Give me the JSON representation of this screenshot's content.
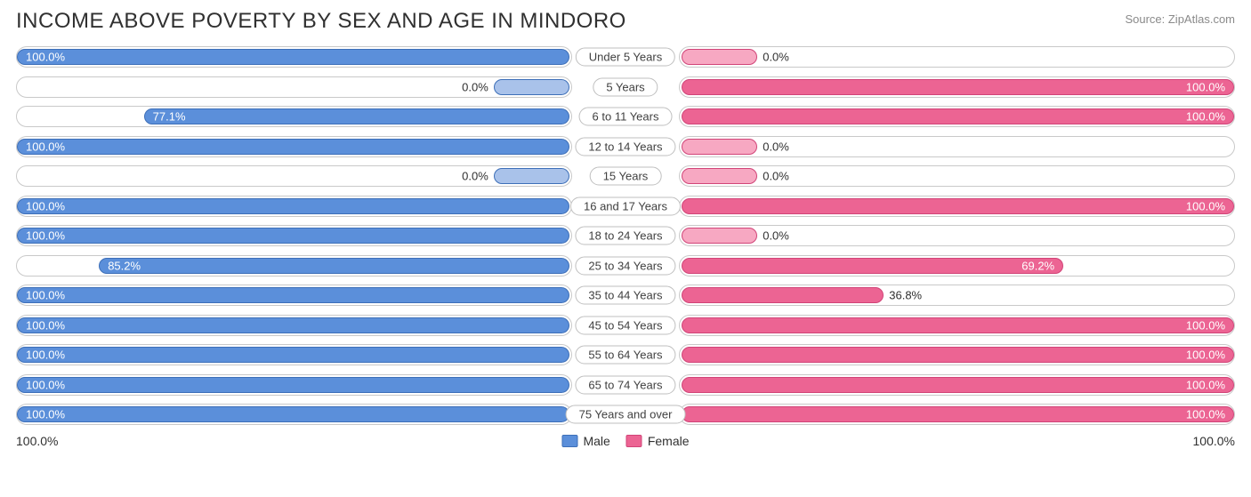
{
  "title": "INCOME ABOVE POVERTY BY SEX AND AGE IN MINDORO",
  "source": "Source: ZipAtlas.com",
  "colors": {
    "male_fill": "#5b8fda",
    "male_border": "#3d6fb8",
    "female_fill": "#ec6493",
    "female_border": "#d14478",
    "male_zero_fill": "#a9c2ea",
    "female_zero_fill": "#f7a8c2",
    "track_border": "#c9c9c9",
    "text_on_bar": "#ffffff",
    "text_off_bar": "#303030",
    "title_color": "#303030",
    "source_color": "#8a8a8a"
  },
  "axis": {
    "left_label": "100.0%",
    "right_label": "100.0%"
  },
  "legend": {
    "male": "Male",
    "female": "Female"
  },
  "zero_stub_percent": 14,
  "rows": [
    {
      "category": "Under 5 Years",
      "male": 100.0,
      "male_label": "100.0%",
      "female": 0.0,
      "female_label": "0.0%"
    },
    {
      "category": "5 Years",
      "male": 0.0,
      "male_label": "0.0%",
      "female": 100.0,
      "female_label": "100.0%"
    },
    {
      "category": "6 to 11 Years",
      "male": 77.1,
      "male_label": "77.1%",
      "female": 100.0,
      "female_label": "100.0%"
    },
    {
      "category": "12 to 14 Years",
      "male": 100.0,
      "male_label": "100.0%",
      "female": 0.0,
      "female_label": "0.0%"
    },
    {
      "category": "15 Years",
      "male": 0.0,
      "male_label": "0.0%",
      "female": 0.0,
      "female_label": "0.0%"
    },
    {
      "category": "16 and 17 Years",
      "male": 100.0,
      "male_label": "100.0%",
      "female": 100.0,
      "female_label": "100.0%"
    },
    {
      "category": "18 to 24 Years",
      "male": 100.0,
      "male_label": "100.0%",
      "female": 0.0,
      "female_label": "0.0%"
    },
    {
      "category": "25 to 34 Years",
      "male": 85.2,
      "male_label": "85.2%",
      "female": 69.2,
      "female_label": "69.2%"
    },
    {
      "category": "35 to 44 Years",
      "male": 100.0,
      "male_label": "100.0%",
      "female": 36.8,
      "female_label": "36.8%"
    },
    {
      "category": "45 to 54 Years",
      "male": 100.0,
      "male_label": "100.0%",
      "female": 100.0,
      "female_label": "100.0%"
    },
    {
      "category": "55 to 64 Years",
      "male": 100.0,
      "male_label": "100.0%",
      "female": 100.0,
      "female_label": "100.0%"
    },
    {
      "category": "65 to 74 Years",
      "male": 100.0,
      "male_label": "100.0%",
      "female": 100.0,
      "female_label": "100.0%"
    },
    {
      "category": "75 Years and over",
      "male": 100.0,
      "male_label": "100.0%",
      "female": 100.0,
      "female_label": "100.0%"
    }
  ]
}
